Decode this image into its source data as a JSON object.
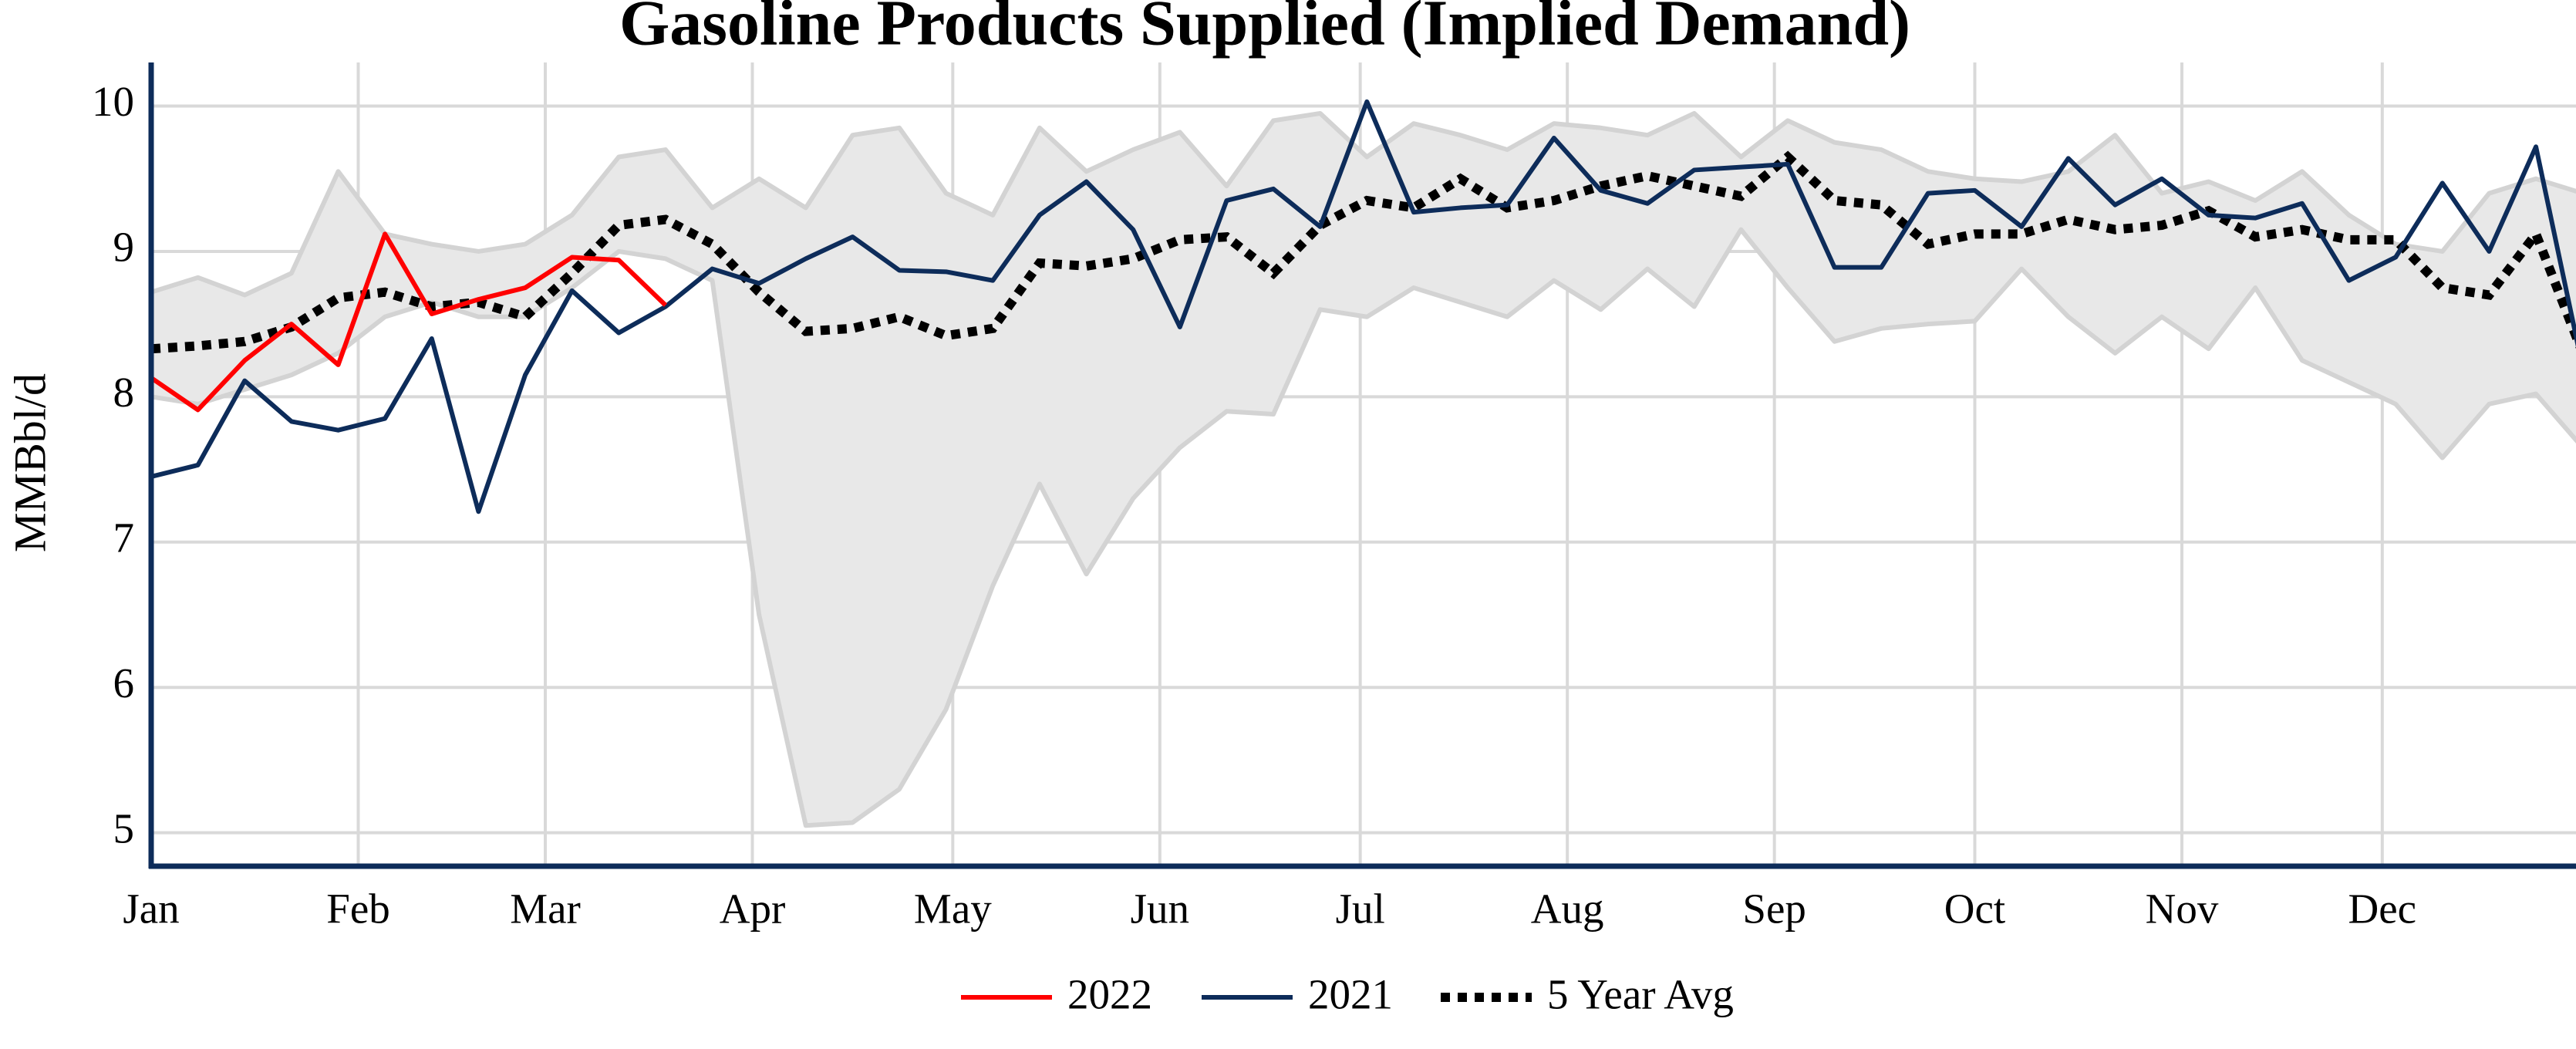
{
  "chart_data": {
    "type": "line",
    "title": "Gasoline Products Supplied (Implied Demand)",
    "y_label": "MMBbl/d",
    "x": [
      0,
      7,
      14,
      21,
      28,
      35,
      42,
      49,
      56,
      63,
      70,
      77,
      84,
      91,
      98,
      105,
      112,
      119,
      126,
      133,
      140,
      147,
      154,
      161,
      168,
      175,
      182,
      189,
      196,
      203,
      210,
      217,
      224,
      231,
      238,
      245,
      252,
      259,
      266,
      273,
      280,
      287,
      294,
      301,
      308,
      315,
      322,
      329,
      336,
      343,
      350,
      357,
      364
    ],
    "xlim": [
      0,
      363
    ],
    "xticks": [
      {
        "value": 0,
        "label": "Jan"
      },
      {
        "value": 31,
        "label": "Feb"
      },
      {
        "value": 59,
        "label": "Mar"
      },
      {
        "value": 90,
        "label": "Apr"
      },
      {
        "value": 120,
        "label": "May"
      },
      {
        "value": 151,
        "label": "Jun"
      },
      {
        "value": 181,
        "label": "Jul"
      },
      {
        "value": 212,
        "label": "Aug"
      },
      {
        "value": 243,
        "label": "Sep"
      },
      {
        "value": 273,
        "label": "Oct"
      },
      {
        "value": 304,
        "label": "Nov"
      },
      {
        "value": 334,
        "label": "Dec"
      }
    ],
    "ylim": [
      4.77,
      10.3
    ],
    "yticks": [
      5,
      6,
      7,
      8,
      9,
      10
    ],
    "grid": true,
    "band": {
      "color": "#e8e8e8",
      "edge_color": "#d3d3d3",
      "upper": [
        8.72,
        8.82,
        8.7,
        8.85,
        9.55,
        9.12,
        9.05,
        9.0,
        9.05,
        9.25,
        9.65,
        9.7,
        9.3,
        9.5,
        9.3,
        9.8,
        9.85,
        9.4,
        9.25,
        9.85,
        9.55,
        9.7,
        9.82,
        9.45,
        9.9,
        9.95,
        9.65,
        9.88,
        9.8,
        9.7,
        9.88,
        9.85,
        9.8,
        9.95,
        9.65,
        9.9,
        9.75,
        9.7,
        9.55,
        9.5,
        9.48,
        9.55,
        9.8,
        9.4,
        9.48,
        9.35,
        9.55,
        9.25,
        9.05,
        9.0,
        9.4,
        9.5,
        9.4
      ],
      "lower": [
        8.0,
        7.95,
        8.05,
        8.15,
        8.3,
        8.55,
        8.65,
        8.55,
        8.55,
        8.75,
        9.0,
        8.95,
        8.8,
        6.5,
        5.05,
        5.07,
        5.3,
        5.85,
        6.7,
        7.4,
        6.78,
        7.3,
        7.65,
        7.9,
        7.88,
        8.6,
        8.55,
        8.75,
        8.65,
        8.55,
        8.8,
        8.6,
        8.88,
        8.62,
        9.15,
        8.75,
        8.38,
        8.47,
        8.5,
        8.52,
        8.88,
        8.55,
        8.3,
        8.55,
        8.33,
        8.75,
        8.25,
        8.1,
        7.95,
        7.58,
        7.95,
        8.02,
        7.65
      ]
    },
    "series": [
      {
        "name": "2022",
        "color": "#ff0000",
        "style": "solid",
        "values": [
          8.13,
          7.91,
          8.25,
          8.5,
          8.22,
          9.12,
          8.57,
          8.67,
          8.75,
          8.96,
          8.94,
          8.63,
          null,
          null,
          null,
          null,
          null,
          null,
          null,
          null,
          null,
          null,
          null,
          null,
          null,
          null,
          null,
          null,
          null,
          null,
          null,
          null,
          null,
          null,
          null,
          null,
          null,
          null,
          null,
          null,
          null,
          null,
          null,
          null,
          null,
          null,
          null,
          null,
          null,
          null,
          null,
          null,
          null
        ]
      },
      {
        "name": "2021",
        "color": "#0d2c5a",
        "style": "solid",
        "values": [
          7.45,
          7.53,
          8.11,
          7.83,
          7.77,
          7.85,
          8.4,
          7.21,
          8.15,
          8.73,
          8.44,
          8.62,
          8.88,
          8.78,
          8.95,
          9.1,
          8.87,
          8.86,
          8.8,
          9.25,
          9.48,
          9.15,
          8.48,
          9.35,
          9.43,
          9.17,
          10.03,
          9.27,
          9.3,
          9.32,
          9.78,
          9.42,
          9.33,
          9.56,
          9.58,
          9.6,
          8.89,
          8.89,
          9.4,
          9.42,
          9.17,
          9.64,
          9.32,
          9.5,
          9.25,
          9.23,
          9.33,
          8.8,
          8.96,
          9.47,
          9.0,
          9.72,
          8.2
        ]
      },
      {
        "name": "5 Year Avg",
        "color": "#000000",
        "style": "dotted",
        "values": [
          8.33,
          8.35,
          8.38,
          8.48,
          8.68,
          8.72,
          8.62,
          8.65,
          8.55,
          8.85,
          9.18,
          9.22,
          9.05,
          8.72,
          8.45,
          8.47,
          8.55,
          8.42,
          8.47,
          8.92,
          8.9,
          8.95,
          9.08,
          9.1,
          8.85,
          9.18,
          9.35,
          9.3,
          9.5,
          9.3,
          9.35,
          9.45,
          9.52,
          9.45,
          9.38,
          9.65,
          9.35,
          9.32,
          9.05,
          9.12,
          9.12,
          9.22,
          9.15,
          9.18,
          9.28,
          9.1,
          9.15,
          9.08,
          9.08,
          8.75,
          8.7,
          9.12,
          8.3
        ]
      }
    ]
  }
}
